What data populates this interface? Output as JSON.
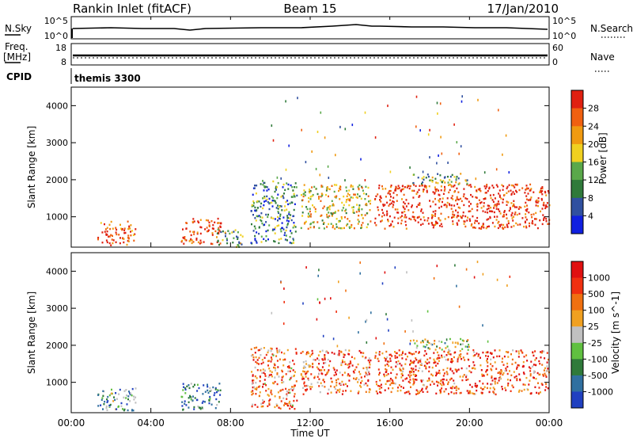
{
  "header": {
    "station": "Rankin Inlet (fitACF)",
    "beam": "Beam 15",
    "date": "17/Jan/2010"
  },
  "top_panels": {
    "nsky_label": "N.Sky",
    "nsky_ticks": [
      "10^5",
      "10^0"
    ],
    "nsearch_label": "N.Search",
    "nsearch_ticks": [
      "10^5",
      "10^0"
    ],
    "freq_label": "Freq.",
    "freq_unit": "[MHz]",
    "freq_ticks": [
      "18",
      "8"
    ],
    "nave_label": "Nave",
    "nave_ticks": [
      "60",
      "0"
    ],
    "cpid_label": "CPID",
    "cpid_value": "themis 3300"
  },
  "axes": {
    "ylabel": "Slant Range [km]",
    "yticks": [
      "4000",
      "3000",
      "2000",
      "1000"
    ],
    "xlabel": "Time UT",
    "xticks": [
      "00:00",
      "04:00",
      "08:00",
      "12:00",
      "16:00",
      "20:00",
      "00:00"
    ]
  },
  "colors": {
    "power": [
      "#1020e0",
      "#3050a0",
      "#2f7a3a",
      "#5aa84a",
      "#f0d020",
      "#f09a10",
      "#f06010",
      "#e02010"
    ],
    "velocity": [
      "#2040c0",
      "#3070a0",
      "#2f7a3a",
      "#60c040",
      "#c0c0c0",
      "#f0a020",
      "#f07010",
      "#f03010",
      "#e01010"
    ]
  },
  "chart_data": [
    {
      "type": "heatmap",
      "title": "Power",
      "ylabel": "Slant Range [km]",
      "xlabel": "Time UT",
      "ylim": [
        180,
        4500
      ],
      "xlim": [
        0,
        24
      ],
      "colorbar": {
        "label": "Power [dB]",
        "ticks": [
          "28",
          "24",
          "20",
          "16",
          "12",
          "8",
          "4"
        ],
        "range": [
          0,
          32
        ]
      },
      "regions": [
        {
          "t0": 1.3,
          "t1": 3.2,
          "r0": 250,
          "r1": 900,
          "level": 0.85
        },
        {
          "t0": 5.5,
          "t1": 7.5,
          "r0": 280,
          "r1": 1000,
          "level": 0.9
        },
        {
          "t0": 7.3,
          "t1": 8.6,
          "r0": 200,
          "r1": 700,
          "level": 0.4
        },
        {
          "t0": 9.0,
          "t1": 11.3,
          "r0": 300,
          "r1": 2000,
          "level": 0.3
        },
        {
          "t0": 11.5,
          "t1": 15.0,
          "r0": 700,
          "r1": 1900,
          "level": 0.6
        },
        {
          "t0": 15.2,
          "t1": 24.0,
          "r0": 700,
          "r1": 1900,
          "level": 0.95
        },
        {
          "t0": 17.0,
          "t1": 20.0,
          "r0": 1900,
          "r1": 2200,
          "level": 0.4
        }
      ]
    },
    {
      "type": "heatmap",
      "title": "Velocity",
      "ylabel": "Slant Range [km]",
      "xlabel": "Time UT",
      "ylim": [
        180,
        4500
      ],
      "xlim": [
        0,
        24
      ],
      "colorbar": {
        "label": "Velocity [m s^-1]",
        "ticks": [
          "1000",
          "500",
          "100",
          "25",
          "-25",
          "-100",
          "-500",
          "-1000"
        ],
        "range": [
          -1000,
          1000
        ]
      },
      "regions": [
        {
          "t0": 1.3,
          "t1": 3.2,
          "r0": 250,
          "r1": 900,
          "level": 0.3
        },
        {
          "t0": 5.5,
          "t1": 7.5,
          "r0": 280,
          "r1": 1000,
          "level": 0.25
        },
        {
          "t0": 9.0,
          "t1": 11.3,
          "r0": 300,
          "r1": 2000,
          "level": 0.7
        },
        {
          "t0": 11.5,
          "t1": 15.0,
          "r0": 700,
          "r1": 1900,
          "level": 0.75
        },
        {
          "t0": 15.2,
          "t1": 24.0,
          "r0": 700,
          "r1": 1900,
          "level": 0.8
        },
        {
          "t0": 17.0,
          "t1": 20.0,
          "r0": 1900,
          "r1": 2200,
          "level": 0.45
        }
      ]
    }
  ]
}
